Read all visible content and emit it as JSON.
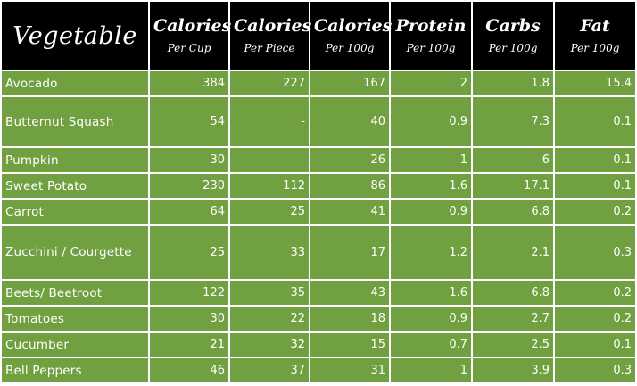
{
  "table": {
    "headers": [
      {
        "main": "Vegetable",
        "sub": ""
      },
      {
        "main": "Calories",
        "sub": "Per Cup"
      },
      {
        "main": "Calories",
        "sub": "Per Piece"
      },
      {
        "main": "Calories",
        "sub": "Per 100g"
      },
      {
        "main": "Protein",
        "sub": "Per 100g"
      },
      {
        "main": "Carbs",
        "sub": "Per 100g"
      },
      {
        "main": "Fat",
        "sub": "Per 100g"
      }
    ],
    "rows": [
      {
        "name": "Avocado",
        "cup": "384",
        "piece": "227",
        "cal100": "167",
        "protein": "2",
        "carbs": "1.8",
        "fat": "15.4"
      },
      {
        "name": "Butternut Squash",
        "cup": "54",
        "piece": "-",
        "cal100": "40",
        "protein": "0.9",
        "carbs": "7.3",
        "fat": "0.1"
      },
      {
        "name": "Pumpkin",
        "cup": "30",
        "piece": "-",
        "cal100": "26",
        "protein": "1",
        "carbs": "6",
        "fat": "0.1"
      },
      {
        "name": "Sweet Potato",
        "cup": "230",
        "piece": "112",
        "cal100": "86",
        "protein": "1.6",
        "carbs": "17.1",
        "fat": "0.1"
      },
      {
        "name": "Carrot",
        "cup": "64",
        "piece": "25",
        "cal100": "41",
        "protein": "0.9",
        "carbs": "6.8",
        "fat": "0.2"
      },
      {
        "name": "Zucchini / Courgette",
        "cup": "25",
        "piece": "33",
        "cal100": "17",
        "protein": "1.2",
        "carbs": "2.1",
        "fat": "0.3"
      },
      {
        "name": "Beets/ Beetroot",
        "cup": "122",
        "piece": "35",
        "cal100": "43",
        "protein": "1.6",
        "carbs": "6.8",
        "fat": "0.2"
      },
      {
        "name": "Tomatoes",
        "cup": "30",
        "piece": "22",
        "cal100": "18",
        "protein": "0.9",
        "carbs": "2.7",
        "fat": "0.2"
      },
      {
        "name": "Cucumber",
        "cup": "21",
        "piece": "32",
        "cal100": "15",
        "protein": "0.7",
        "carbs": "2.5",
        "fat": "0.1"
      },
      {
        "name": "Bell Peppers",
        "cup": "46",
        "piece": "37",
        "cal100": "31",
        "protein": "1",
        "carbs": "3.9",
        "fat": "0.3"
      }
    ]
  },
  "colors": {
    "header_bg": "#000000",
    "row_bg": "#70a040",
    "text": "#ffffff",
    "grid": "#ffffff"
  }
}
